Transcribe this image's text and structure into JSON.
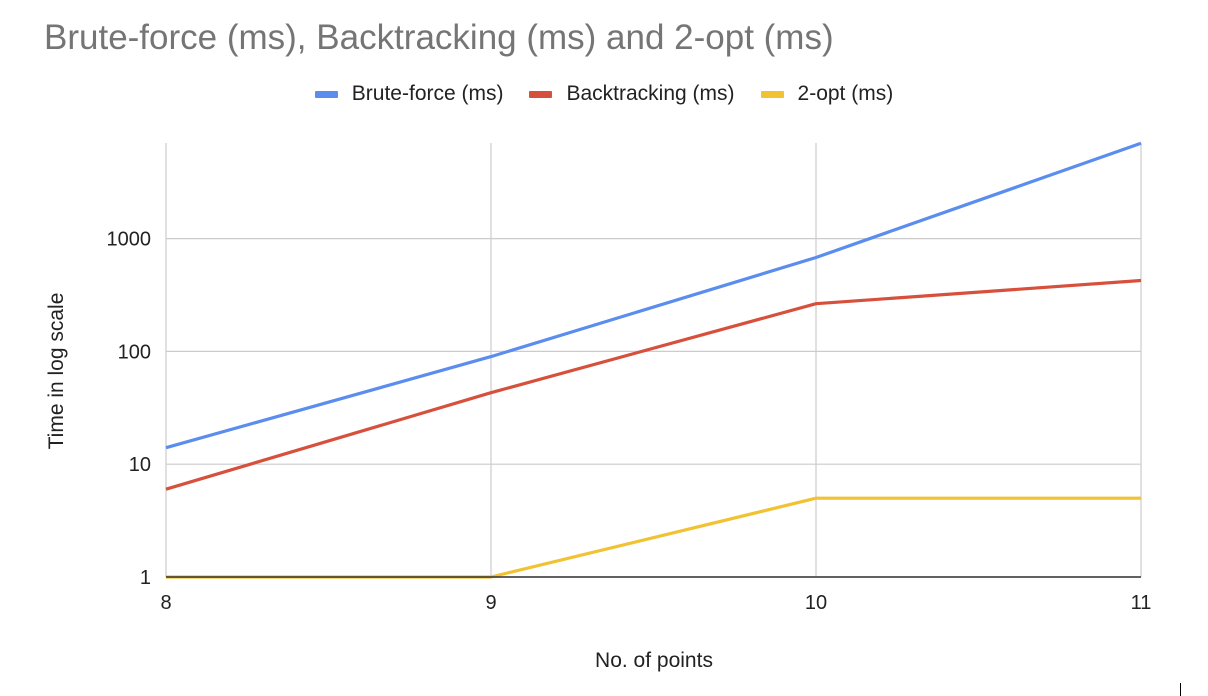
{
  "chart_data": {
    "type": "line",
    "title": "Brute-force (ms), Backtracking (ms) and 2-opt (ms)",
    "xlabel": "No. of points",
    "ylabel": "Time in log scale",
    "yscale": "log",
    "x": [
      8,
      9,
      10,
      11
    ],
    "x_tick_labels": [
      "8",
      "9",
      "10",
      "11"
    ],
    "y_tick_labels": [
      "1",
      "10",
      "100",
      "1000"
    ],
    "ylim": [
      1,
      7000
    ],
    "grid": true,
    "legend_position": "top",
    "series": [
      {
        "name": "Brute-force (ms)",
        "color": "#5b8def",
        "values": [
          14,
          90,
          680,
          7000
        ]
      },
      {
        "name": "Backtracking (ms)",
        "color": "#d6503c",
        "values": [
          6,
          43,
          265,
          425
        ]
      },
      {
        "name": "2-opt (ms)",
        "color": "#f1c232",
        "values": [
          1,
          1,
          5,
          5
        ]
      }
    ]
  }
}
